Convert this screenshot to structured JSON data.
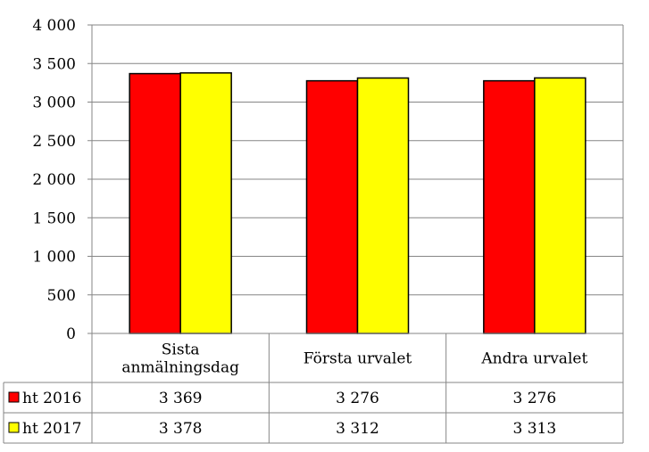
{
  "chart_data": {
    "type": "bar",
    "categories": [
      [
        "Sista",
        "anmälningsdag"
      ],
      [
        "Första urvalet"
      ],
      [
        "Andra urvalet"
      ]
    ],
    "series": [
      {
        "name": "ht 2016",
        "color": "#ff0000",
        "values": [
          3369,
          3276,
          3276
        ],
        "labels": [
          "3 369",
          "3 276",
          "3 276"
        ]
      },
      {
        "name": "ht 2017",
        "color": "#ffff00",
        "values": [
          3378,
          3312,
          3313
        ],
        "labels": [
          "3 378",
          "3 312",
          "3 313"
        ]
      }
    ],
    "ylim": [
      0,
      4000
    ],
    "yticks": [
      0,
      500,
      1000,
      1500,
      2000,
      2500,
      3000,
      3500,
      4000
    ],
    "ytick_labels": [
      "0",
      "500",
      "1 000",
      "1 500",
      "2 000",
      "2 500",
      "3 000",
      "3 500",
      "4 000"
    ],
    "grid": true,
    "data_table": true,
    "title": "",
    "xlabel": "",
    "ylabel": ""
  }
}
